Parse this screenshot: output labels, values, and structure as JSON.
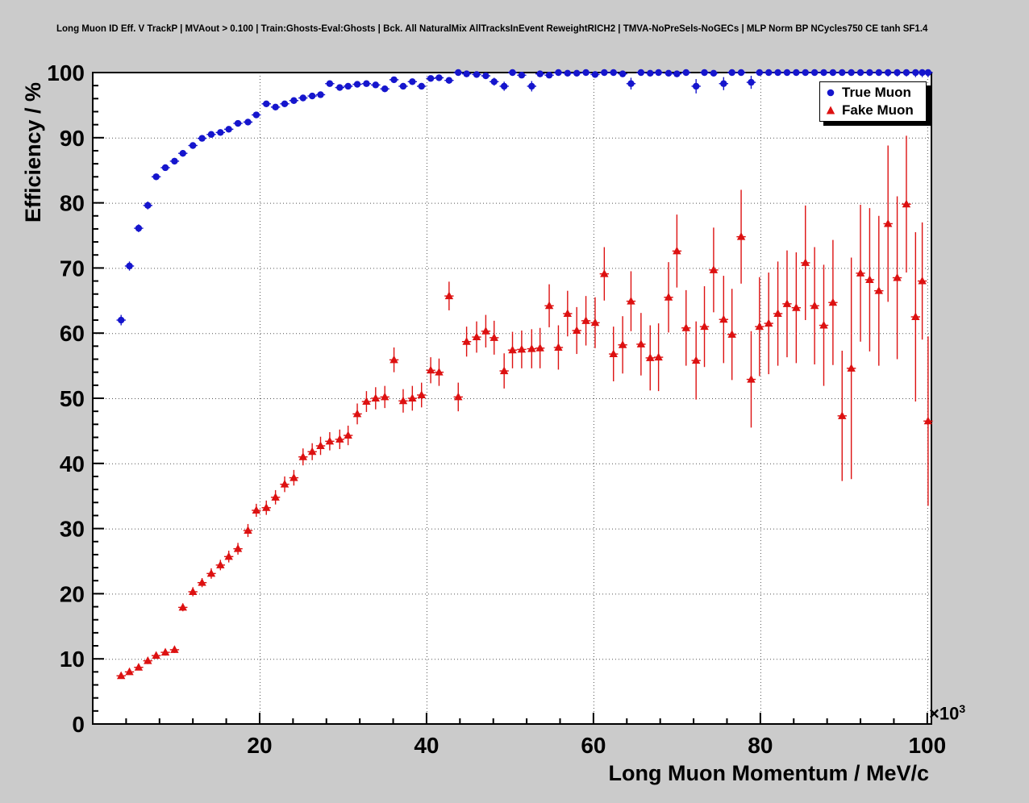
{
  "title": "Long Muon ID Eff. V TrackP | MVAout > 0.100 | Train:Ghosts-Eval:Ghosts | Bck. All NaturalMix AllTracksInEvent ReweightRICH2 | TMVA-NoPreSels-NoGECs | MLP Norm BP NCycles750 CE tanh SF1.4",
  "colors": {
    "canvas_background": "#cbcbcb",
    "plot_background": "#ffffff",
    "true_muon": "#1515cd",
    "fake_muon": "#dd1111"
  },
  "chart_data": {
    "type": "scatter",
    "title": "Long Muon ID Eff. V TrackP | MVAout > 0.100 | Train:Ghosts-Eval:Ghosts | Bck. All NaturalMix AllTracksInEvent ReweightRICH2 | TMVA-NoPreSels-NoGECs | MLP Norm BP NCycles750 CE tanh SF1.4",
    "xlabel": "Long Muon Momentum / MeV/c",
    "ylabel": "Efficiency / %",
    "x_scale_prefix": "×10",
    "x_scale_exponent": "3",
    "xlim": [
      0,
      100.5
    ],
    "ylim": [
      0,
      100
    ],
    "x_ticks": [
      20,
      40,
      60,
      80,
      100
    ],
    "y_ticks": [
      0,
      10,
      20,
      30,
      40,
      50,
      60,
      70,
      80,
      90,
      100
    ],
    "grid": true,
    "grid_style": "dotted",
    "legend_position": "top-right",
    "bin_half_width": 0.55,
    "point_format": [
      "momentum_1e3_mevc",
      "efficiency_pct",
      "efficiency_err_pct"
    ],
    "series": [
      {
        "name": "True Muon",
        "marker": "circle",
        "color": "#1515cd",
        "points": [
          [
            3.4,
            62.0,
            0.8
          ],
          [
            4.4,
            70.3,
            0.7
          ],
          [
            5.5,
            76.1,
            0.6
          ],
          [
            6.6,
            79.6,
            0.6
          ],
          [
            7.6,
            84.0,
            0.5
          ],
          [
            8.7,
            85.4,
            0.5
          ],
          [
            9.8,
            86.4,
            0.5
          ],
          [
            10.8,
            87.6,
            0.5
          ],
          [
            12.0,
            88.8,
            0.5
          ],
          [
            13.1,
            89.9,
            0.4
          ],
          [
            14.2,
            90.5,
            0.4
          ],
          [
            15.3,
            90.8,
            0.4
          ],
          [
            16.3,
            91.3,
            0.4
          ],
          [
            17.4,
            92.2,
            0.4
          ],
          [
            18.6,
            92.4,
            0.4
          ],
          [
            19.6,
            93.5,
            0.4
          ],
          [
            20.8,
            95.2,
            0.4
          ],
          [
            21.9,
            94.7,
            0.4
          ],
          [
            23.0,
            95.2,
            0.4
          ],
          [
            24.1,
            95.7,
            0.4
          ],
          [
            25.2,
            96.1,
            0.4
          ],
          [
            26.3,
            96.4,
            0.4
          ],
          [
            27.3,
            96.6,
            0.4
          ],
          [
            28.4,
            98.3,
            0.3
          ],
          [
            29.6,
            97.7,
            0.4
          ],
          [
            30.6,
            97.9,
            0.4
          ],
          [
            31.7,
            98.2,
            0.4
          ],
          [
            32.8,
            98.3,
            0.4
          ],
          [
            33.9,
            98.1,
            0.4
          ],
          [
            35.0,
            97.5,
            0.5
          ],
          [
            36.1,
            98.9,
            0.4
          ],
          [
            37.2,
            97.9,
            0.5
          ],
          [
            38.3,
            98.6,
            0.4
          ],
          [
            39.4,
            97.9,
            0.5
          ],
          [
            40.5,
            99.1,
            0.4
          ],
          [
            41.5,
            99.2,
            0.4
          ],
          [
            42.7,
            98.8,
            0.5
          ],
          [
            43.8,
            100.0,
            0.2
          ],
          [
            44.8,
            99.8,
            0.3
          ],
          [
            46.0,
            99.7,
            0.3
          ],
          [
            47.1,
            99.5,
            0.4
          ],
          [
            48.1,
            98.6,
            0.6
          ],
          [
            49.3,
            97.9,
            0.7
          ],
          [
            50.3,
            100.0,
            0.2
          ],
          [
            51.4,
            99.6,
            0.4
          ],
          [
            52.6,
            97.9,
            0.8
          ],
          [
            53.6,
            99.8,
            0.3
          ],
          [
            54.7,
            99.6,
            0.4
          ],
          [
            55.8,
            100.0,
            0.2
          ],
          [
            56.9,
            99.9,
            0.2
          ],
          [
            58.0,
            99.9,
            0.3
          ],
          [
            59.1,
            100.0,
            0.2
          ],
          [
            60.2,
            99.7,
            0.4
          ],
          [
            61.3,
            100.0,
            0.2
          ],
          [
            62.4,
            100.0,
            0.2
          ],
          [
            63.5,
            99.8,
            0.3
          ],
          [
            64.5,
            98.3,
            0.9
          ],
          [
            65.7,
            100.0,
            0.2
          ],
          [
            66.8,
            99.9,
            0.3
          ],
          [
            67.8,
            100.0,
            0.2
          ],
          [
            69.0,
            99.9,
            0.3
          ],
          [
            70.0,
            99.8,
            0.4
          ],
          [
            71.1,
            100.0,
            0.2
          ],
          [
            72.3,
            97.9,
            1.1
          ],
          [
            73.3,
            100.0,
            0.2
          ],
          [
            74.4,
            99.9,
            0.3
          ],
          [
            75.6,
            98.3,
            1.0
          ],
          [
            76.6,
            100.0,
            0.2
          ],
          [
            77.7,
            100.0,
            0.3
          ],
          [
            78.9,
            98.5,
            1.0
          ],
          [
            79.9,
            100.0,
            0.2
          ],
          [
            81.0,
            100.0,
            0.3
          ],
          [
            82.1,
            100.0,
            0.3
          ],
          [
            83.2,
            100.0,
            0.3
          ],
          [
            84.3,
            100.0,
            0.3
          ],
          [
            85.4,
            100.0,
            0.3
          ],
          [
            86.5,
            100.0,
            0.4
          ],
          [
            87.6,
            100.0,
            0.4
          ],
          [
            88.7,
            100.0,
            0.4
          ],
          [
            89.8,
            100.0,
            0.4
          ],
          [
            90.9,
            100.0,
            0.5
          ],
          [
            92.0,
            100.0,
            0.5
          ],
          [
            93.1,
            100.0,
            0.5
          ],
          [
            94.2,
            100.0,
            0.5
          ],
          [
            95.3,
            100.0,
            0.6
          ],
          [
            96.4,
            100.0,
            0.6
          ],
          [
            97.5,
            100.0,
            0.6
          ],
          [
            98.6,
            100.0,
            0.7
          ],
          [
            99.4,
            100.0,
            0.7
          ],
          [
            100.1,
            100.0,
            0.7
          ]
        ]
      },
      {
        "name": "Fake Muon",
        "marker": "triangle",
        "color": "#dd1111",
        "points": [
          [
            3.4,
            7.4,
            0.4
          ],
          [
            4.4,
            8.0,
            0.4
          ],
          [
            5.5,
            8.7,
            0.4
          ],
          [
            6.6,
            9.7,
            0.5
          ],
          [
            7.6,
            10.5,
            0.5
          ],
          [
            8.7,
            11.0,
            0.5
          ],
          [
            9.8,
            11.4,
            0.5
          ],
          [
            10.8,
            17.9,
            0.6
          ],
          [
            12.0,
            20.3,
            0.7
          ],
          [
            13.1,
            21.7,
            0.7
          ],
          [
            14.2,
            23.1,
            0.8
          ],
          [
            15.3,
            24.4,
            0.8
          ],
          [
            16.3,
            25.7,
            0.9
          ],
          [
            17.4,
            26.9,
            0.9
          ],
          [
            18.6,
            29.7,
            1.0
          ],
          [
            19.6,
            32.8,
            1.0
          ],
          [
            20.8,
            33.2,
            1.1
          ],
          [
            21.9,
            34.8,
            1.1
          ],
          [
            23.0,
            36.8,
            1.2
          ],
          [
            24.1,
            37.8,
            1.2
          ],
          [
            25.2,
            41.0,
            1.3
          ],
          [
            26.3,
            41.8,
            1.3
          ],
          [
            27.3,
            42.7,
            1.4
          ],
          [
            28.4,
            43.4,
            1.4
          ],
          [
            29.6,
            43.7,
            1.5
          ],
          [
            30.6,
            44.3,
            1.5
          ],
          [
            31.7,
            47.6,
            1.6
          ],
          [
            32.8,
            49.5,
            1.6
          ],
          [
            33.9,
            50.0,
            1.7
          ],
          [
            35.0,
            50.2,
            1.7
          ],
          [
            36.1,
            55.9,
            1.9
          ],
          [
            37.2,
            49.6,
            1.8
          ],
          [
            38.3,
            50.0,
            1.9
          ],
          [
            39.4,
            50.5,
            1.9
          ],
          [
            40.5,
            54.3,
            2.0
          ],
          [
            41.5,
            54.0,
            2.1
          ],
          [
            42.7,
            65.7,
            2.2
          ],
          [
            43.8,
            50.2,
            2.2
          ],
          [
            44.8,
            58.7,
            2.3
          ],
          [
            46.0,
            59.4,
            2.4
          ],
          [
            47.1,
            60.3,
            2.5
          ],
          [
            48.1,
            59.3,
            2.6
          ],
          [
            49.3,
            54.2,
            2.7
          ],
          [
            50.3,
            57.4,
            2.8
          ],
          [
            51.4,
            57.5,
            2.9
          ],
          [
            52.6,
            57.6,
            3.0
          ],
          [
            53.6,
            57.7,
            3.1
          ],
          [
            54.7,
            64.2,
            3.3
          ],
          [
            55.8,
            57.8,
            3.4
          ],
          [
            56.9,
            63.0,
            3.5
          ],
          [
            58.0,
            60.4,
            3.6
          ],
          [
            59.1,
            61.9,
            3.8
          ],
          [
            60.2,
            61.6,
            3.9
          ],
          [
            61.3,
            69.1,
            4.1
          ],
          [
            62.4,
            56.8,
            4.2
          ],
          [
            63.5,
            58.2,
            4.4
          ],
          [
            64.5,
            64.9,
            4.6
          ],
          [
            65.7,
            58.3,
            4.8
          ],
          [
            66.8,
            56.2,
            5.0
          ],
          [
            67.8,
            56.3,
            5.2
          ],
          [
            69.0,
            65.5,
            5.4
          ],
          [
            70.0,
            72.6,
            5.6
          ],
          [
            71.1,
            60.8,
            5.8
          ],
          [
            72.3,
            55.8,
            6.0
          ],
          [
            73.3,
            61.0,
            6.2
          ],
          [
            74.4,
            69.7,
            6.5
          ],
          [
            75.6,
            62.1,
            6.7
          ],
          [
            76.6,
            59.8,
            7.0
          ],
          [
            77.7,
            74.8,
            7.2
          ],
          [
            78.9,
            52.9,
            7.4
          ],
          [
            79.9,
            61.0,
            7.6
          ],
          [
            81.0,
            61.5,
            7.8
          ],
          [
            82.1,
            63.0,
            8.0
          ],
          [
            83.2,
            64.5,
            8.2
          ],
          [
            84.3,
            63.9,
            8.5
          ],
          [
            85.4,
            70.8,
            8.8
          ],
          [
            86.5,
            64.2,
            9.0
          ],
          [
            87.6,
            61.2,
            9.3
          ],
          [
            88.7,
            64.7,
            9.6
          ],
          [
            89.8,
            47.3,
            10.0
          ],
          [
            90.9,
            54.6,
            17.0
          ],
          [
            92.0,
            69.2,
            10.5
          ],
          [
            93.1,
            68.2,
            11.0
          ],
          [
            94.2,
            66.5,
            11.5
          ],
          [
            95.3,
            76.8,
            12.0
          ],
          [
            96.4,
            68.5,
            12.5
          ],
          [
            97.5,
            79.8,
            10.5
          ],
          [
            98.6,
            62.5,
            13.0
          ],
          [
            99.4,
            68.0,
            9.0
          ],
          [
            100.1,
            46.5,
            13.0
          ]
        ]
      }
    ]
  }
}
